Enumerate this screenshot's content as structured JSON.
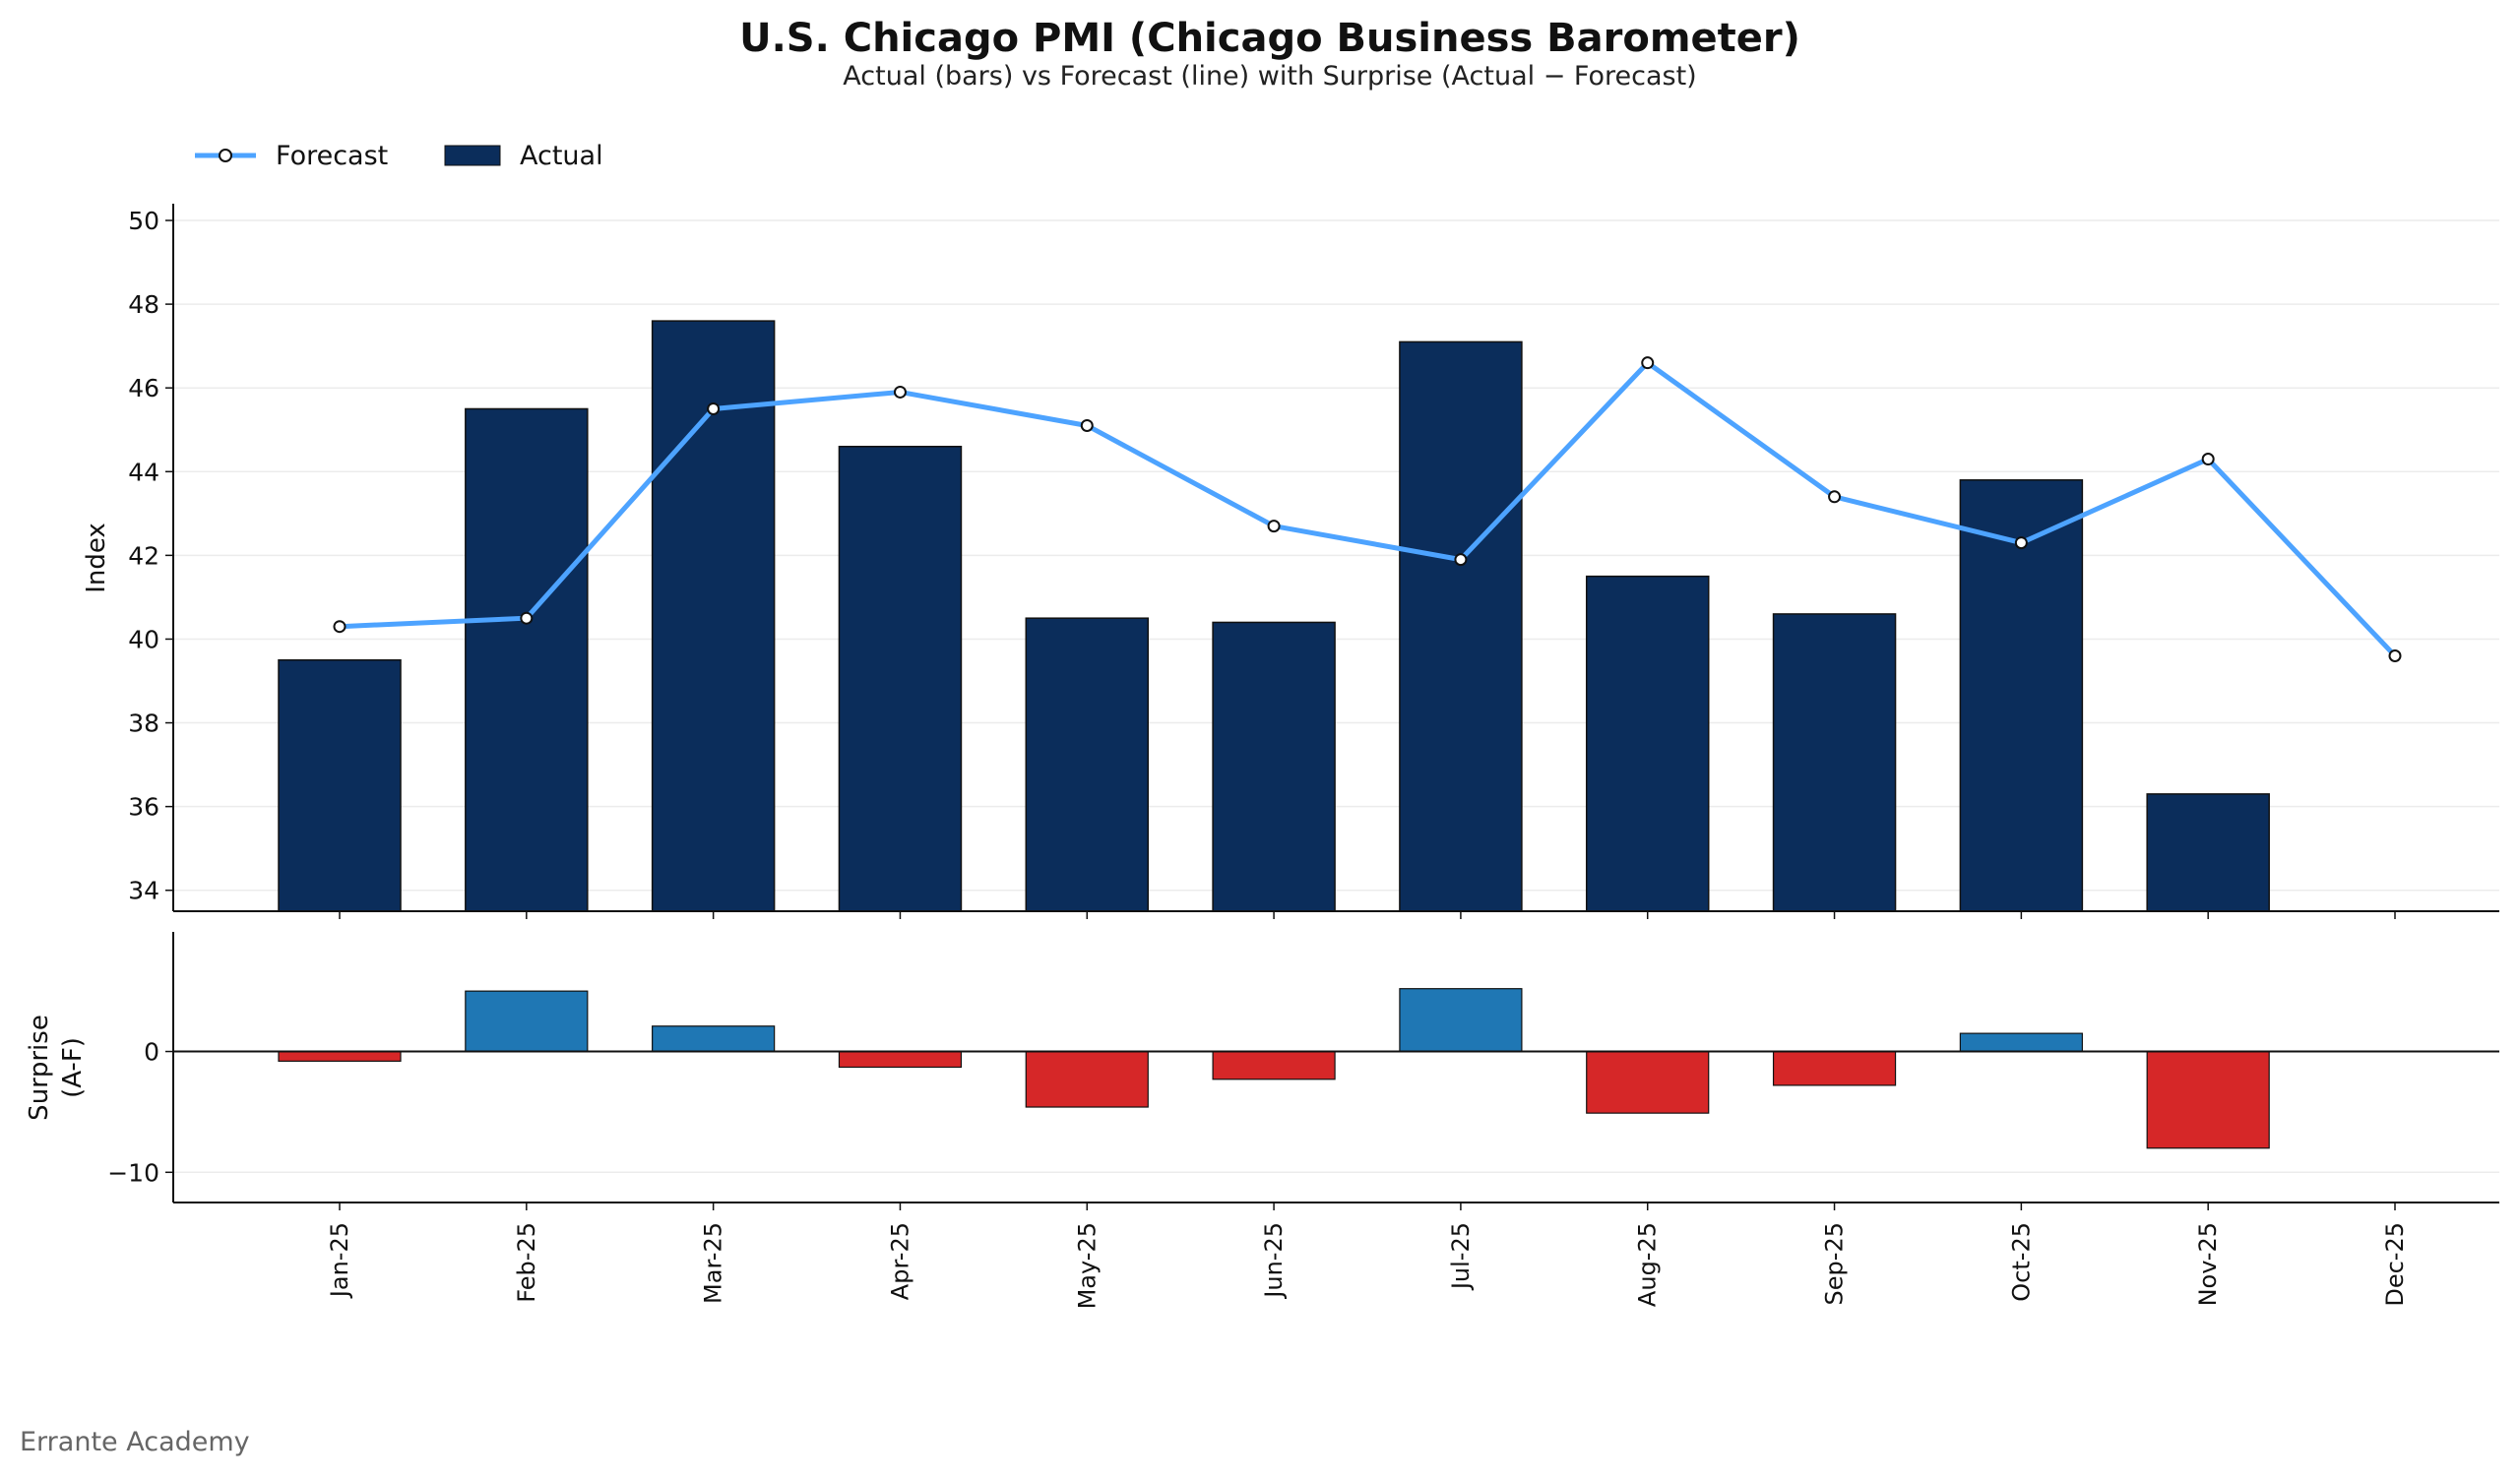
{
  "chart_data": {
    "type": "bar",
    "title": "U.S. Chicago PMI (Chicago Business Barometer)",
    "subtitle": "Actual (bars) vs Forecast (line) with Surprise (Actual − Forecast)",
    "categories": [
      "Jan-25",
      "Feb-25",
      "Mar-25",
      "Apr-25",
      "May-25",
      "Jun-25",
      "Jul-25",
      "Aug-25",
      "Sep-25",
      "Oct-25",
      "Nov-25",
      "Dec-25"
    ],
    "series": [
      {
        "name": "Forecast",
        "type": "line",
        "color": "#4da3ff",
        "values": [
          40.3,
          40.5,
          45.5,
          45.9,
          45.1,
          42.7,
          41.9,
          46.6,
          43.4,
          42.3,
          44.3,
          39.6
        ]
      },
      {
        "name": "Actual",
        "type": "bar",
        "color": "#0b2d5b",
        "values": [
          39.5,
          45.5,
          47.6,
          44.6,
          40.5,
          40.4,
          47.1,
          41.5,
          40.6,
          43.8,
          36.3,
          null
        ]
      }
    ],
    "ylabel": "Index",
    "ylim": [
      33.5,
      50.4
    ],
    "yticks": [
      34,
      36,
      38,
      40,
      42,
      44,
      46,
      48,
      50
    ],
    "grid": true,
    "legend": "top-left",
    "surprise_panel": {
      "type": "bar",
      "ylabel_lines": [
        "Surprise",
        "(A-F)"
      ],
      "values": [
        -0.8,
        5.0,
        2.1,
        -1.3,
        -4.6,
        -2.3,
        5.2,
        -5.1,
        -2.8,
        1.5,
        -8.0,
        null
      ],
      "ylim": [
        -12.5,
        9.9
      ],
      "yticks": [
        -10,
        0
      ],
      "ytick_labels": [
        "−10",
        "0"
      ],
      "positive_color": "#1f77b4",
      "negative_color": "#d62728"
    },
    "footer": "Errante Academy"
  }
}
